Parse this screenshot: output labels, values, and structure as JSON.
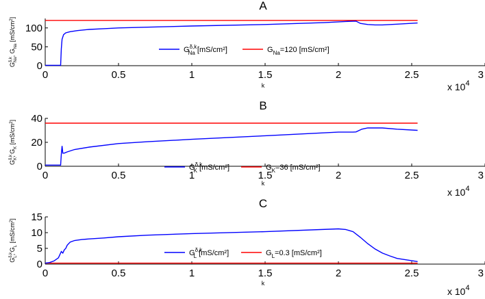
{
  "chart_data": [
    {
      "type": "line",
      "title": "A",
      "xlabel": "k",
      "ylabel": "G_Na^{δ,k}, G_Na [mS/cm^2]",
      "xlim": [
        0,
        30000
      ],
      "ylim": [
        0,
        125
      ],
      "xticks": [
        "0",
        "0.5",
        "1",
        "1.5",
        "2",
        "2.5",
        "3"
      ],
      "yticks": [
        "0",
        "50",
        "100"
      ],
      "x_multiplier": "x 10^4",
      "legend": [
        {
          "main": "G",
          "sub": "Na",
          "sup": "δ,k",
          "rest": " [mS/cm²]",
          "color": "#0000ff"
        },
        {
          "main": "G",
          "sub": "Na",
          "sup": "",
          "rest": "=120 [mS/cm²]",
          "color": "#ff0000"
        }
      ],
      "series": [
        {
          "color": "#0000ff",
          "x": [
            0,
            1050,
            1100,
            1150,
            1250,
            1400,
            1700,
            2200,
            3000,
            4000,
            5000,
            7000,
            10000,
            15000,
            19000,
            20500,
            21200,
            21500,
            22000,
            22500,
            23000,
            24000,
            25400
          ],
          "y": [
            1,
            1,
            45,
            70,
            82,
            87,
            90,
            93,
            96,
            98,
            100,
            102,
            105,
            109,
            114,
            117,
            118,
            112,
            109,
            108,
            108,
            110,
            113
          ]
        },
        {
          "color": "#ff0000",
          "x": [
            0,
            25400
          ],
          "y": [
            120,
            120
          ]
        }
      ]
    },
    {
      "type": "line",
      "title": "B",
      "xlabel": "k",
      "ylabel": "G_K^{δ,k}, G_K [mS/cm^2]",
      "xlim": [
        0,
        30000
      ],
      "ylim": [
        0,
        40
      ],
      "xticks": [
        "0",
        "0.5",
        "1",
        "1.5",
        "2",
        "2.5",
        "3"
      ],
      "yticks": [
        "0",
        "20",
        "40"
      ],
      "x_multiplier": "x 10^4",
      "legend": [
        {
          "main": "G",
          "sub": "K",
          "sup": "δ,k",
          "rest": " [mS/cm²]",
          "color": "#0000ff"
        },
        {
          "main": "G",
          "sub": "K",
          "sup": "",
          "rest": "=36 [mS/cm²]",
          "color": "#ff0000"
        }
      ],
      "series": [
        {
          "color": "#0000ff",
          "x": [
            0,
            1050,
            1100,
            1150,
            1200,
            1300,
            1500,
            2000,
            3000,
            5000,
            7000,
            10000,
            15000,
            20000,
            21000,
            21200,
            21600,
            22000,
            23000,
            24000,
            25400
          ],
          "y": [
            1,
            1,
            10,
            17,
            11,
            11,
            12,
            14,
            16,
            19,
            20.5,
            22.5,
            25.5,
            28.5,
            28.5,
            28.7,
            31,
            32,
            32,
            31,
            30
          ]
        },
        {
          "color": "#ff0000",
          "x": [
            0,
            25400
          ],
          "y": [
            36,
            36
          ]
        }
      ]
    },
    {
      "type": "line",
      "title": "C",
      "xlabel": "k",
      "ylabel": "G_L^{δ,k}, G_L [mS/cm^2]",
      "xlim": [
        0,
        30000
      ],
      "ylim": [
        0,
        15
      ],
      "xticks": [
        "0",
        "0.5",
        "1",
        "1.5",
        "2",
        "2.5",
        "3"
      ],
      "yticks": [
        "0",
        "5",
        "10",
        "15"
      ],
      "x_multiplier": "x 10^4",
      "legend": [
        {
          "main": "G",
          "sub": "L",
          "sup": "δ,k",
          "rest": " [mS/cm²]",
          "color": "#0000ff"
        },
        {
          "main": "G",
          "sub": "L",
          "sup": "",
          "rest": "=0.3 [mS/cm²]",
          "color": "#ff0000"
        }
      ],
      "series": [
        {
          "color": "#0000ff",
          "x": [
            0,
            300,
            600,
            900,
            1100,
            1200,
            1300,
            1400,
            1500,
            1700,
            2000,
            2500,
            3000,
            4000,
            5000,
            7000,
            10000,
            15000,
            20000,
            20500,
            21000,
            21500,
            22000,
            22500,
            23000,
            23500,
            24000,
            25400
          ],
          "y": [
            0.3,
            0.5,
            1,
            2,
            4,
            3.5,
            4.5,
            5,
            6,
            7,
            7.5,
            7.8,
            8,
            8.3,
            8.7,
            9.2,
            9.7,
            10.3,
            11.2,
            11,
            10.3,
            8.5,
            6.5,
            4.8,
            3.5,
            2.6,
            1.8,
            0.8
          ]
        },
        {
          "color": "#ff0000",
          "x": [
            0,
            25400
          ],
          "y": [
            0.3,
            0.3
          ]
        }
      ]
    }
  ]
}
